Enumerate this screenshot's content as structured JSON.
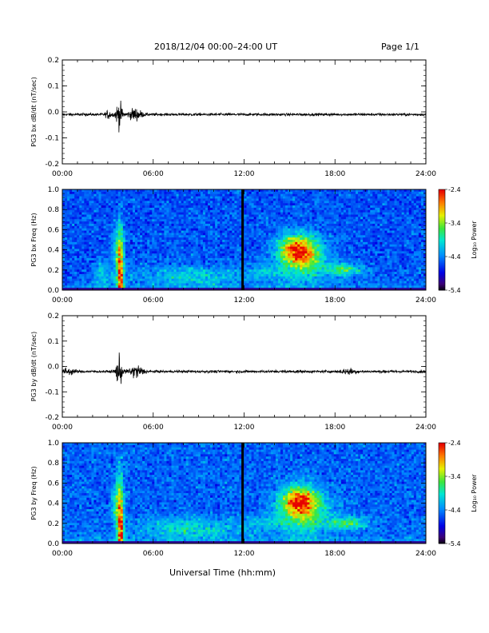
{
  "header": {
    "title": "2018/12/04  00:00–24:00 UT",
    "page": "Page 1/1"
  },
  "xaxis": {
    "label": "Universal Time (hh:mm)",
    "ticks": [
      "00:00",
      "06:00",
      "12:00",
      "18:00",
      "24:00"
    ]
  },
  "colorbar": {
    "label": "Log₁₀ Power",
    "ticks": [
      "-2.4",
      "-3.4",
      "-4.4",
      "-5.4"
    ]
  },
  "chart_data": [
    {
      "type": "line",
      "ylabel": "PG3 bx dB/dt (nT/sec)",
      "ylim": [
        -0.2,
        0.2
      ],
      "xlim": [
        0,
        24
      ],
      "yticks": [
        "0.2",
        "0.1",
        "0.0",
        "-0.1",
        "-0.2"
      ],
      "baseline": -0.01,
      "noise_amplitude": 0.004,
      "bursts": [
        {
          "center_hour": 3.05,
          "width_hour": 0.2,
          "amplitude": 0.012
        },
        {
          "center_hour": 3.75,
          "width_hour": 0.22,
          "amplitude": 0.04
        },
        {
          "center_hour": 4.8,
          "width_hour": 0.45,
          "amplitude": 0.018
        }
      ]
    },
    {
      "type": "heatmap",
      "ylabel": "PG3 bx Freq (Hz)",
      "ylim": [
        0.0,
        1.0
      ],
      "xlim": [
        0,
        24
      ],
      "yticks": [
        "1.0",
        "0.8",
        "0.6",
        "0.4",
        "0.2",
        "0.0"
      ],
      "color_range": [
        -5.4,
        -2.4
      ],
      "background_level": -4.55,
      "gap_hour": 11.9,
      "features": [
        {
          "center_hour": 3.85,
          "center_freq": 0.05,
          "hour_width": 0.2,
          "freq_width": 0.5,
          "level": 1.9
        },
        {
          "center_hour": 3.6,
          "center_freq": 0.35,
          "hour_width": 0.3,
          "freq_width": 0.25,
          "level": 0.8
        },
        {
          "center_hour": 2.6,
          "center_freq": 0.15,
          "hour_width": 0.5,
          "freq_width": 0.12,
          "level": 0.5
        },
        {
          "center_hour": 8.5,
          "center_freq": 0.14,
          "hour_width": 3.2,
          "freq_width": 0.1,
          "level": 0.55
        },
        {
          "center_hour": 15.5,
          "center_freq": 0.4,
          "hour_width": 1.1,
          "freq_width": 0.14,
          "level": 1.6
        },
        {
          "center_hour": 16.0,
          "center_freq": 0.3,
          "hour_width": 1.6,
          "freq_width": 0.22,
          "level": 0.9
        },
        {
          "center_hour": 18.7,
          "center_freq": 0.2,
          "hour_width": 1.2,
          "freq_width": 0.06,
          "level": 0.9
        },
        {
          "center_hour": 13.5,
          "center_freq": 0.18,
          "hour_width": 1.5,
          "freq_width": 0.08,
          "level": 0.35
        }
      ]
    },
    {
      "type": "line",
      "ylabel": "PG3 by dB/dt (nT/sec)",
      "ylim": [
        -0.2,
        0.2
      ],
      "xlim": [
        0,
        24
      ],
      "yticks": [
        "0.2",
        "0.1",
        "0.0",
        "-0.1",
        "-0.2"
      ],
      "baseline": -0.02,
      "noise_amplitude": 0.004,
      "bursts": [
        {
          "center_hour": 0.4,
          "width_hour": 0.4,
          "amplitude": 0.01
        },
        {
          "center_hour": 3.75,
          "width_hour": 0.22,
          "amplitude": 0.045
        },
        {
          "center_hour": 4.9,
          "width_hour": 0.45,
          "amplitude": 0.02
        },
        {
          "center_hour": 18.9,
          "width_hour": 0.5,
          "amplitude": 0.008
        }
      ]
    },
    {
      "type": "heatmap",
      "ylabel": "PG3 by Freq (Hz)",
      "ylim": [
        0.0,
        1.0
      ],
      "xlim": [
        0,
        24
      ],
      "yticks": [
        "1.0",
        "0.8",
        "0.6",
        "0.4",
        "0.2",
        "0.0"
      ],
      "color_range": [
        -5.4,
        -2.4
      ],
      "background_level": -4.5,
      "gap_hour": 11.9,
      "features": [
        {
          "center_hour": 3.85,
          "center_freq": 0.06,
          "hour_width": 0.2,
          "freq_width": 0.5,
          "level": 1.9
        },
        {
          "center_hour": 3.6,
          "center_freq": 0.4,
          "hour_width": 0.3,
          "freq_width": 0.25,
          "level": 0.8
        },
        {
          "center_hour": 8.5,
          "center_freq": 0.15,
          "hour_width": 3.2,
          "freq_width": 0.1,
          "level": 0.6
        },
        {
          "center_hour": 15.6,
          "center_freq": 0.42,
          "hour_width": 1.1,
          "freq_width": 0.14,
          "level": 1.6
        },
        {
          "center_hour": 16.0,
          "center_freq": 0.3,
          "hour_width": 1.6,
          "freq_width": 0.22,
          "level": 0.9
        },
        {
          "center_hour": 18.8,
          "center_freq": 0.2,
          "hour_width": 1.3,
          "freq_width": 0.06,
          "level": 0.9
        },
        {
          "center_hour": 13.5,
          "center_freq": 0.2,
          "hour_width": 1.5,
          "freq_width": 0.08,
          "level": 0.35
        }
      ]
    }
  ]
}
